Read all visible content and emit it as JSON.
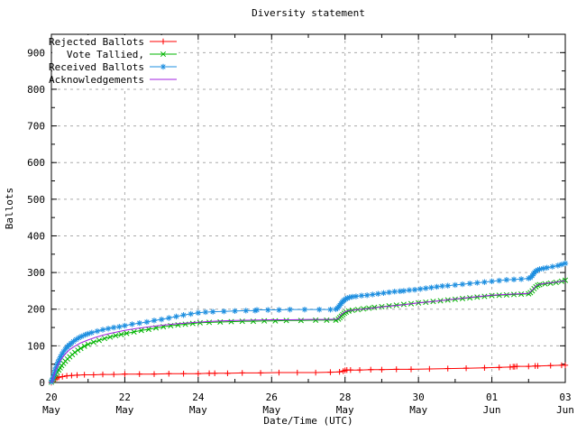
{
  "chart_data": {
    "type": "line",
    "title": "Diversity statement",
    "xlabel": "Date/Time (UTC)",
    "ylabel": "Ballots",
    "xlim": [
      0,
      14
    ],
    "ylim": [
      0,
      950
    ],
    "grid": true,
    "legend_position": "top-left",
    "x_axis_note": "days since 20 May 00:00 UTC",
    "x_major_ticks": [
      {
        "day": 0,
        "day_label": "20",
        "month_label": "May"
      },
      {
        "day": 2,
        "day_label": "22",
        "month_label": "May"
      },
      {
        "day": 4,
        "day_label": "24",
        "month_label": "May"
      },
      {
        "day": 6,
        "day_label": "26",
        "month_label": "May"
      },
      {
        "day": 8,
        "day_label": "28",
        "month_label": "May"
      },
      {
        "day": 10,
        "day_label": "30",
        "month_label": "May"
      },
      {
        "day": 12,
        "day_label": "01",
        "month_label": "Jun"
      },
      {
        "day": 14,
        "day_label": "03",
        "month_label": "Jun"
      }
    ],
    "x_minor_tick_days": [
      1,
      3,
      5,
      7,
      9,
      11,
      13
    ],
    "y_major_ticks": [
      0,
      100,
      200,
      300,
      400,
      500,
      600,
      700,
      800,
      900
    ],
    "y_minor_step": 50,
    "colors": {
      "grid": "#aaaaaa",
      "axis": "#000000",
      "background": "#ffffff"
    },
    "series": [
      {
        "name": "Rejected Ballots",
        "color": "#ff0000",
        "marker": "plus",
        "points": [
          [
            0,
            0
          ],
          [
            0.05,
            5
          ],
          [
            0.1,
            9
          ],
          [
            0.15,
            12
          ],
          [
            0.2,
            14
          ],
          [
            0.3,
            16
          ],
          [
            0.42,
            18
          ],
          [
            0.55,
            19
          ],
          [
            0.7,
            20
          ],
          [
            0.9,
            21
          ],
          [
            1.15,
            21
          ],
          [
            1.4,
            22
          ],
          [
            1.7,
            22
          ],
          [
            2.0,
            23
          ],
          [
            2.4,
            23
          ],
          [
            2.8,
            23
          ],
          [
            3.2,
            24
          ],
          [
            3.6,
            24
          ],
          [
            4.0,
            24
          ],
          [
            4.3,
            25
          ],
          [
            4.45,
            25
          ],
          [
            4.8,
            25
          ],
          [
            5.2,
            26
          ],
          [
            5.7,
            26
          ],
          [
            6.2,
            27
          ],
          [
            6.7,
            27
          ],
          [
            7.2,
            27
          ],
          [
            7.6,
            28
          ],
          [
            7.85,
            29
          ],
          [
            7.95,
            31
          ],
          [
            8.0,
            33
          ],
          [
            8.05,
            34
          ],
          [
            8.15,
            34
          ],
          [
            8.4,
            34
          ],
          [
            8.7,
            35
          ],
          [
            9.0,
            35
          ],
          [
            9.4,
            36
          ],
          [
            9.8,
            36
          ],
          [
            10.3,
            37
          ],
          [
            10.8,
            38
          ],
          [
            11.3,
            39
          ],
          [
            11.8,
            40
          ],
          [
            12.2,
            41
          ],
          [
            12.5,
            42
          ],
          [
            12.58,
            43
          ],
          [
            12.62,
            43
          ],
          [
            12.68,
            44
          ],
          [
            13.0,
            44
          ],
          [
            13.18,
            45
          ],
          [
            13.25,
            45
          ],
          [
            13.6,
            46
          ],
          [
            13.9,
            47
          ],
          [
            14,
            47
          ]
        ]
      },
      {
        "name": "Vote Tallied,",
        "color": "#00b400",
        "marker": "cross",
        "points": [
          [
            0,
            1
          ],
          [
            0.03,
            5
          ],
          [
            0.06,
            10
          ],
          [
            0.09,
            16
          ],
          [
            0.12,
            22
          ],
          [
            0.16,
            28
          ],
          [
            0.2,
            34
          ],
          [
            0.24,
            40
          ],
          [
            0.28,
            46
          ],
          [
            0.33,
            52
          ],
          [
            0.38,
            58
          ],
          [
            0.44,
            64
          ],
          [
            0.5,
            70
          ],
          [
            0.57,
            76
          ],
          [
            0.64,
            82
          ],
          [
            0.72,
            88
          ],
          [
            0.8,
            93
          ],
          [
            0.9,
            99
          ],
          [
            1.0,
            104
          ],
          [
            1.15,
            110
          ],
          [
            1.3,
            115
          ],
          [
            1.45,
            120
          ],
          [
            1.6,
            124
          ],
          [
            1.75,
            128
          ],
          [
            1.9,
            131
          ],
          [
            2.05,
            134
          ],
          [
            2.25,
            138
          ],
          [
            2.45,
            142
          ],
          [
            2.65,
            145
          ],
          [
            2.85,
            149
          ],
          [
            3.05,
            152
          ],
          [
            3.25,
            155
          ],
          [
            3.45,
            157
          ],
          [
            3.65,
            159
          ],
          [
            3.85,
            161
          ],
          [
            4.05,
            163
          ],
          [
            4.3,
            164
          ],
          [
            4.6,
            165
          ],
          [
            4.9,
            166
          ],
          [
            5.2,
            167
          ],
          [
            5.5,
            167
          ],
          [
            5.8,
            168
          ],
          [
            6.1,
            168
          ],
          [
            6.4,
            169
          ],
          [
            6.8,
            169
          ],
          [
            7.2,
            170
          ],
          [
            7.5,
            170
          ],
          [
            7.75,
            170
          ],
          [
            7.82,
            173
          ],
          [
            7.86,
            177
          ],
          [
            7.9,
            181
          ],
          [
            7.94,
            185
          ],
          [
            7.98,
            189
          ],
          [
            8.03,
            192
          ],
          [
            8.1,
            195
          ],
          [
            8.2,
            197
          ],
          [
            8.35,
            199
          ],
          [
            8.5,
            201
          ],
          [
            8.65,
            203
          ],
          [
            8.8,
            205
          ],
          [
            9.0,
            207
          ],
          [
            9.2,
            209
          ],
          [
            9.4,
            211
          ],
          [
            9.6,
            213
          ],
          [
            9.8,
            215
          ],
          [
            10.0,
            217
          ],
          [
            10.2,
            219
          ],
          [
            10.4,
            221
          ],
          [
            10.6,
            223
          ],
          [
            10.8,
            225
          ],
          [
            11.0,
            227
          ],
          [
            11.2,
            229
          ],
          [
            11.4,
            231
          ],
          [
            11.6,
            233
          ],
          [
            11.8,
            235
          ],
          [
            12.0,
            237
          ],
          [
            12.2,
            238
          ],
          [
            12.4,
            239
          ],
          [
            12.6,
            240
          ],
          [
            12.8,
            241
          ],
          [
            13.0,
            242
          ],
          [
            13.05,
            245
          ],
          [
            13.1,
            250
          ],
          [
            13.15,
            256
          ],
          [
            13.2,
            261
          ],
          [
            13.25,
            265
          ],
          [
            13.3,
            267
          ],
          [
            13.45,
            269
          ],
          [
            13.6,
            271
          ],
          [
            13.75,
            273
          ],
          [
            13.9,
            276
          ],
          [
            14,
            279
          ]
        ]
      },
      {
        "name": "Received Ballots",
        "color": "#1e8fe0",
        "marker": "asterisk",
        "points": [
          [
            0,
            2
          ],
          [
            0.02,
            6
          ],
          [
            0.04,
            12
          ],
          [
            0.06,
            18
          ],
          [
            0.08,
            25
          ],
          [
            0.1,
            33
          ],
          [
            0.12,
            40
          ],
          [
            0.15,
            48
          ],
          [
            0.18,
            55
          ],
          [
            0.21,
            62
          ],
          [
            0.25,
            70
          ],
          [
            0.29,
            77
          ],
          [
            0.33,
            84
          ],
          [
            0.38,
            91
          ],
          [
            0.43,
            97
          ],
          [
            0.48,
            102
          ],
          [
            0.54,
            107
          ],
          [
            0.6,
            112
          ],
          [
            0.67,
            117
          ],
          [
            0.75,
            122
          ],
          [
            0.83,
            126
          ],
          [
            0.92,
            130
          ],
          [
            1.0,
            133
          ],
          [
            1.1,
            136
          ],
          [
            1.25,
            140
          ],
          [
            1.4,
            144
          ],
          [
            1.55,
            147
          ],
          [
            1.7,
            150
          ],
          [
            1.85,
            152
          ],
          [
            2.0,
            155
          ],
          [
            2.2,
            159
          ],
          [
            2.4,
            162
          ],
          [
            2.6,
            165
          ],
          [
            2.8,
            169
          ],
          [
            3.0,
            172
          ],
          [
            3.2,
            176
          ],
          [
            3.4,
            180
          ],
          [
            3.6,
            184
          ],
          [
            3.8,
            187
          ],
          [
            4.0,
            190
          ],
          [
            4.2,
            192
          ],
          [
            4.4,
            193
          ],
          [
            4.7,
            194
          ],
          [
            5.0,
            195
          ],
          [
            5.3,
            196
          ],
          [
            5.55,
            196
          ],
          [
            5.6,
            198
          ],
          [
            5.9,
            198
          ],
          [
            6.2,
            198
          ],
          [
            6.5,
            199
          ],
          [
            6.9,
            199
          ],
          [
            7.3,
            199
          ],
          [
            7.6,
            199
          ],
          [
            7.75,
            200
          ],
          [
            7.8,
            203
          ],
          [
            7.83,
            207
          ],
          [
            7.86,
            211
          ],
          [
            7.89,
            215
          ],
          [
            7.92,
            219
          ],
          [
            7.95,
            222
          ],
          [
            7.98,
            225
          ],
          [
            8.02,
            228
          ],
          [
            8.06,
            230
          ],
          [
            8.12,
            232
          ],
          [
            8.2,
            234
          ],
          [
            8.3,
            235
          ],
          [
            8.45,
            237
          ],
          [
            8.6,
            238
          ],
          [
            8.75,
            240
          ],
          [
            8.9,
            242
          ],
          [
            9.05,
            244
          ],
          [
            9.2,
            246
          ],
          [
            9.35,
            248
          ],
          [
            9.5,
            249
          ],
          [
            9.6,
            250
          ],
          [
            9.75,
            252
          ],
          [
            9.9,
            253
          ],
          [
            10.05,
            255
          ],
          [
            10.2,
            257
          ],
          [
            10.35,
            259
          ],
          [
            10.5,
            261
          ],
          [
            10.65,
            263
          ],
          [
            10.8,
            264
          ],
          [
            11.0,
            266
          ],
          [
            11.2,
            268
          ],
          [
            11.4,
            270
          ],
          [
            11.6,
            272
          ],
          [
            11.8,
            274
          ],
          [
            12.0,
            276
          ],
          [
            12.2,
            278
          ],
          [
            12.4,
            280
          ],
          [
            12.6,
            281
          ],
          [
            12.8,
            282
          ],
          [
            13.0,
            284
          ],
          [
            13.05,
            286
          ],
          [
            13.1,
            291
          ],
          [
            13.13,
            296
          ],
          [
            13.16,
            300
          ],
          [
            13.2,
            304
          ],
          [
            13.25,
            307
          ],
          [
            13.3,
            309
          ],
          [
            13.4,
            311
          ],
          [
            13.5,
            313
          ],
          [
            13.65,
            316
          ],
          [
            13.8,
            319
          ],
          [
            13.9,
            322
          ],
          [
            14,
            325
          ]
        ]
      },
      {
        "name": "Acknowledgements",
        "color": "#a020e0",
        "marker": "none",
        "points": [
          [
            0,
            0
          ],
          [
            0.1,
            30
          ],
          [
            0.2,
            52
          ],
          [
            0.3,
            68
          ],
          [
            0.4,
            80
          ],
          [
            0.5,
            90
          ],
          [
            0.65,
            100
          ],
          [
            0.8,
            108
          ],
          [
            1.0,
            116
          ],
          [
            1.2,
            123
          ],
          [
            1.4,
            129
          ],
          [
            1.6,
            134
          ],
          [
            1.8,
            138
          ],
          [
            2.0,
            142
          ],
          [
            2.3,
            147
          ],
          [
            2.6,
            151
          ],
          [
            3.0,
            156
          ],
          [
            3.4,
            160
          ],
          [
            3.8,
            163
          ],
          [
            4.2,
            166
          ],
          [
            4.6,
            168
          ],
          [
            5.0,
            169
          ],
          [
            5.5,
            170
          ],
          [
            6.0,
            171
          ],
          [
            6.5,
            171
          ],
          [
            7.0,
            172
          ],
          [
            7.5,
            172
          ],
          [
            7.8,
            173
          ],
          [
            7.9,
            185
          ],
          [
            8.0,
            193
          ],
          [
            8.1,
            196
          ],
          [
            8.3,
            198
          ],
          [
            8.6,
            201
          ],
          [
            9.0,
            206
          ],
          [
            9.5,
            211
          ],
          [
            10.0,
            217
          ],
          [
            10.5,
            222
          ],
          [
            11.0,
            228
          ],
          [
            11.5,
            233
          ],
          [
            12.0,
            238
          ],
          [
            12.5,
            241
          ],
          [
            13.0,
            243
          ],
          [
            13.1,
            252
          ],
          [
            13.2,
            263
          ],
          [
            13.3,
            268
          ],
          [
            13.5,
            271
          ],
          [
            13.75,
            274
          ],
          [
            14,
            278
          ]
        ]
      }
    ]
  }
}
